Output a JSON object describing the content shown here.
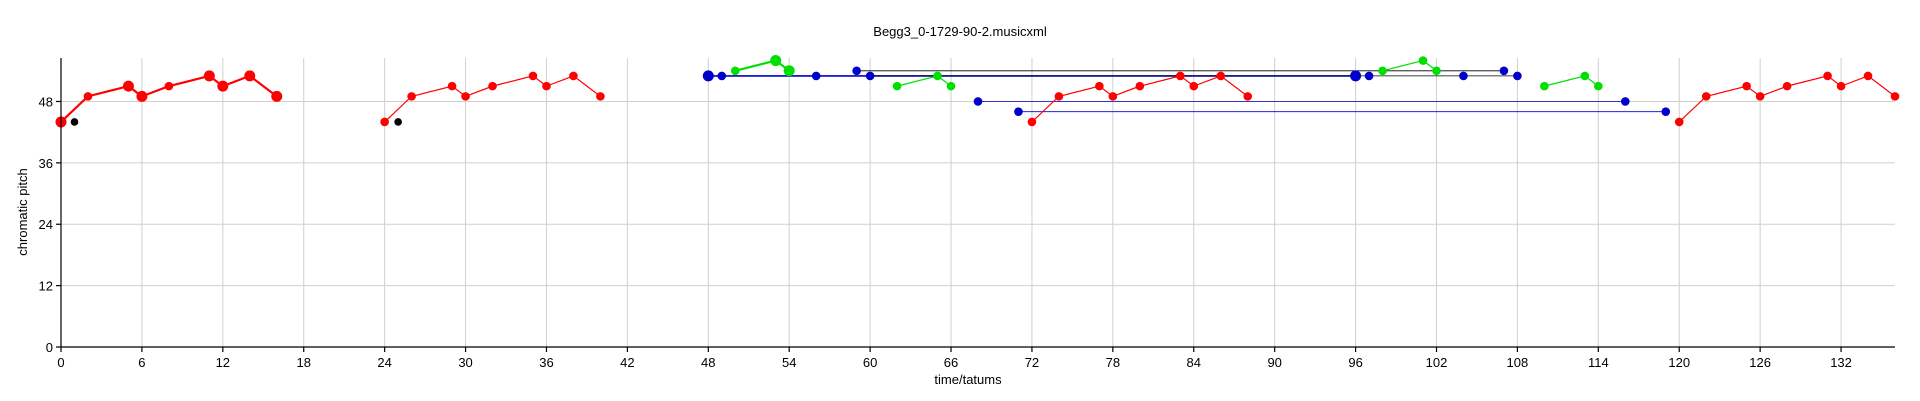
{
  "chart_data": {
    "type": "scatter",
    "title": "Begg3_0-1729-90-2.musicxml",
    "xlabel": "time/tatums",
    "ylabel": "chromatic pitch",
    "xlim": [
      0,
      136
    ],
    "ylim": [
      0,
      56.5
    ],
    "grid": true,
    "xticks": [
      0,
      6,
      12,
      18,
      24,
      30,
      36,
      42,
      48,
      54,
      60,
      66,
      72,
      78,
      84,
      90,
      96,
      102,
      108,
      114,
      120,
      126,
      132
    ],
    "yticks": [
      0,
      12,
      24,
      36,
      48
    ],
    "colors": {
      "red": "#ff0000",
      "green": "#00e000",
      "blue": "#0000cc",
      "black": "#000000"
    },
    "series": [
      {
        "color": "red",
        "connected": true,
        "points": [
          [
            0,
            44
          ],
          [
            2,
            49
          ],
          [
            5,
            51
          ],
          [
            6,
            49
          ],
          [
            8,
            51
          ],
          [
            11,
            53
          ],
          [
            12,
            51
          ],
          [
            14,
            53
          ],
          [
            16,
            49
          ]
        ],
        "sizes": [
          2,
          1,
          2,
          2,
          1,
          2,
          2,
          2,
          2
        ]
      },
      {
        "color": "black",
        "connected": false,
        "points": [
          [
            1,
            44
          ]
        ]
      },
      {
        "color": "red",
        "connected": true,
        "points": [
          [
            24,
            44
          ],
          [
            26,
            49
          ],
          [
            29,
            51
          ],
          [
            30,
            49
          ],
          [
            32,
            51
          ],
          [
            35,
            53
          ],
          [
            36,
            51
          ],
          [
            38,
            53
          ],
          [
            40,
            49
          ]
        ]
      },
      {
        "color": "black",
        "connected": false,
        "points": [
          [
            25,
            44
          ]
        ]
      },
      {
        "color": "green",
        "connected": true,
        "points": [
          [
            50,
            54
          ],
          [
            53,
            56
          ],
          [
            54,
            54
          ]
        ],
        "sizes": [
          1,
          2,
          2
        ]
      },
      {
        "color": "green",
        "connected": true,
        "points": [
          [
            62,
            51
          ],
          [
            65,
            53
          ],
          [
            66,
            51
          ]
        ]
      },
      {
        "color": "red",
        "connected": true,
        "points": [
          [
            72,
            44
          ],
          [
            74,
            49
          ],
          [
            77,
            51
          ],
          [
            78,
            49
          ],
          [
            80,
            51
          ],
          [
            83,
            53
          ],
          [
            84,
            51
          ],
          [
            86,
            53
          ],
          [
            88,
            49
          ]
        ]
      },
      {
        "color": "green",
        "connected": true,
        "points": [
          [
            98,
            54
          ],
          [
            101,
            56
          ],
          [
            102,
            54
          ]
        ]
      },
      {
        "color": "green",
        "connected": true,
        "points": [
          [
            110,
            51
          ],
          [
            113,
            53
          ],
          [
            114,
            51
          ]
        ]
      },
      {
        "color": "red",
        "connected": true,
        "points": [
          [
            120,
            44
          ],
          [
            122,
            49
          ],
          [
            125,
            51
          ],
          [
            126,
            49
          ],
          [
            128,
            51
          ],
          [
            131,
            53
          ],
          [
            132,
            51
          ],
          [
            134,
            53
          ],
          [
            136,
            49
          ]
        ]
      },
      {
        "color": "blue",
        "connected": false,
        "points": [
          [
            48,
            53
          ],
          [
            49,
            53
          ],
          [
            56,
            53
          ],
          [
            59,
            54
          ],
          [
            60,
            53
          ],
          [
            68,
            48
          ],
          [
            71,
            46
          ],
          [
            96,
            53
          ],
          [
            97,
            53
          ],
          [
            104,
            53
          ],
          [
            107,
            54
          ],
          [
            108,
            53
          ],
          [
            116,
            48
          ],
          [
            119,
            46
          ]
        ],
        "sizes": [
          2,
          1,
          1,
          1,
          1,
          1,
          1,
          2,
          1,
          1,
          1,
          1,
          1,
          1
        ]
      }
    ],
    "links": [
      {
        "from": [
          48,
          53
        ],
        "to": [
          96,
          53
        ],
        "color": "blue",
        "width": 1.6
      },
      {
        "from": [
          59,
          54
        ],
        "to": [
          107,
          54
        ],
        "color": "black",
        "width": 0.8
      },
      {
        "from": [
          60,
          53
        ],
        "to": [
          108,
          53
        ],
        "color": "black",
        "width": 0.8
      },
      {
        "from": [
          68,
          48
        ],
        "to": [
          116,
          48
        ],
        "color": "blue",
        "width": 0.8
      },
      {
        "from": [
          71,
          46
        ],
        "to": [
          119,
          46
        ],
        "color": "blue",
        "width": 0.8
      }
    ]
  }
}
